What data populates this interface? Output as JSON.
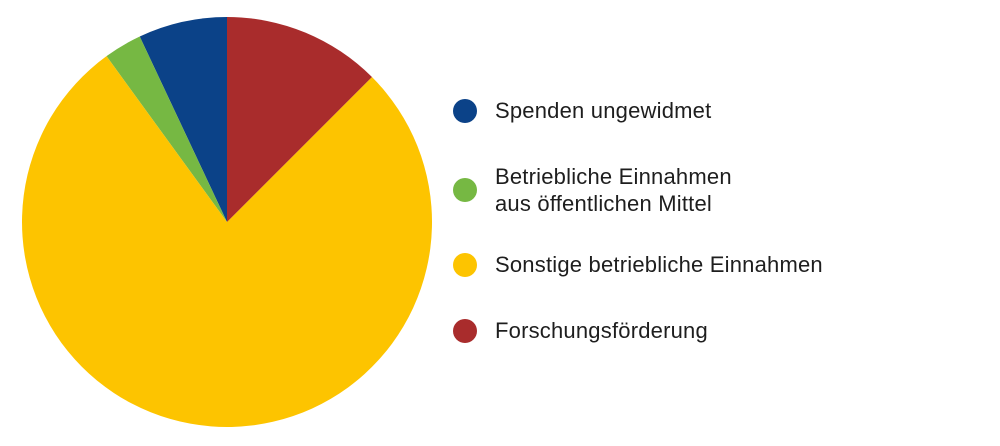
{
  "figure": {
    "background": "#FFFFFF",
    "text_color": "#1E1E1E"
  },
  "chart_data": {
    "type": "pie",
    "title": "",
    "legend_position": "right",
    "start_angle": "12-o'clock",
    "direction": "counterclockwise",
    "unit": "percent",
    "values_are_estimates_from_arc_angles": true,
    "series": [
      {
        "id": "spenden-ungewidmet",
        "name": "Spenden ungewidmet",
        "value": 7,
        "color": "#0B4288"
      },
      {
        "id": "betriebliche-einnahmen-aus-oeffentlichen-mittel",
        "name": "Betriebliche Einnahmen aus öffentlichen Mittel",
        "value": 3,
        "color": "#76B843"
      },
      {
        "id": "sonstige-betriebliche-einnahmen",
        "name": "Sonstige betriebliche Einnahmen",
        "value": 77.5,
        "color": "#FDC400"
      },
      {
        "id": "forschungsfoerderung",
        "name": "Forschungsförderung",
        "value": 12.5,
        "color": "#A92C2C"
      }
    ]
  },
  "legend": {
    "items": [
      {
        "line1": "Spenden ungewidmet"
      },
      {
        "line1": "Betriebliche Einnahmen",
        "line2": "aus öffentlichen Mittel"
      },
      {
        "line1": "Sonstige betriebliche Einnahmen"
      },
      {
        "line1": "Forschungsförderung"
      }
    ]
  }
}
